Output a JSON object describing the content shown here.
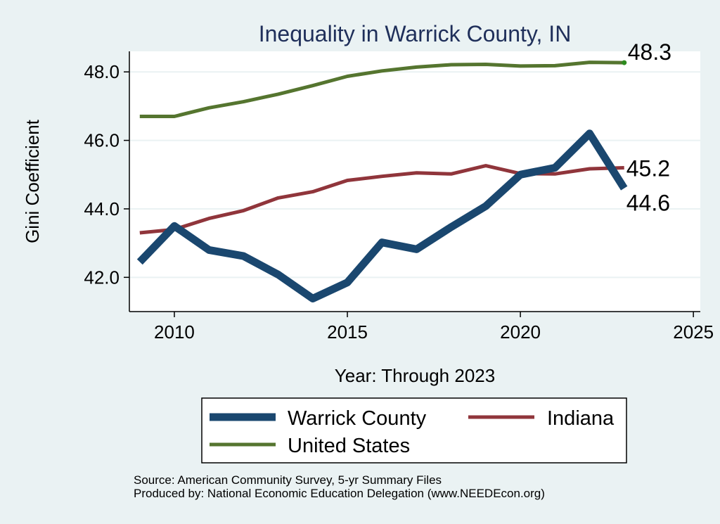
{
  "chart_data": {
    "type": "line",
    "title": "Inequality in Warrick County, IN",
    "xlabel": "Year: Through 2023",
    "ylabel": "Gini Coefficient",
    "xlim": [
      2008.7,
      2025.2
    ],
    "ylim": [
      41.0,
      48.6
    ],
    "x_ticks": [
      2010,
      2015,
      2020,
      2025
    ],
    "y_ticks": [
      42.0,
      44.0,
      46.0,
      48.0
    ],
    "y_tick_labels": [
      "42.0",
      "44.0",
      "46.0",
      "48.0"
    ],
    "grid": true,
    "legend_position": "bottom",
    "x": [
      2009,
      2010,
      2011,
      2012,
      2013,
      2014,
      2015,
      2016,
      2017,
      2018,
      2019,
      2020,
      2021,
      2022,
      2023
    ],
    "series": [
      {
        "name": "Warrick County",
        "color": "#1A476F",
        "values": [
          42.45,
          43.5,
          42.8,
          42.62,
          42.08,
          41.38,
          41.85,
          43.02,
          42.82,
          43.47,
          44.08,
          45.0,
          45.2,
          46.2,
          44.6
        ],
        "end_label": "44.6"
      },
      {
        "name": "Indiana",
        "color": "#90353B",
        "values": [
          43.3,
          43.4,
          43.72,
          43.95,
          44.32,
          44.5,
          44.83,
          44.95,
          45.05,
          45.02,
          45.26,
          45.03,
          45.02,
          45.17,
          45.2
        ],
        "end_label": "45.2"
      },
      {
        "name": "United States",
        "color": "#55752F",
        "values": [
          46.7,
          46.7,
          46.95,
          47.13,
          47.35,
          47.6,
          47.87,
          48.03,
          48.14,
          48.21,
          48.22,
          48.17,
          48.18,
          48.28,
          48.27
        ],
        "end_label": "48.3"
      }
    ]
  },
  "notes": {
    "line1": "Source: American Community Survey, 5-yr Summary Files",
    "line2": "Produced by: National Economic Education Delegation (www.NEEDEcon.org)"
  }
}
